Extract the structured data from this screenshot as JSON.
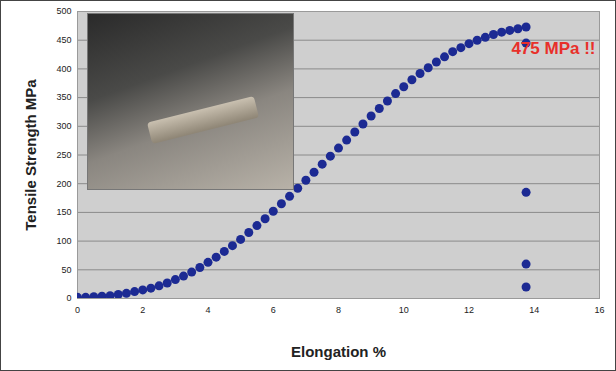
{
  "chart_data": {
    "type": "scatter",
    "x_label": "Elongation %",
    "y_label": "Tensile Strength MPa",
    "annotation": "475 MPa !!",
    "x": [
      0,
      0.25,
      0.5,
      0.75,
      1,
      1.25,
      1.5,
      1.75,
      2,
      2.25,
      2.5,
      2.75,
      3,
      3.25,
      3.5,
      3.75,
      4,
      4.25,
      4.5,
      4.75,
      5,
      5.25,
      5.5,
      5.75,
      6,
      6.25,
      6.5,
      6.75,
      7,
      7.25,
      7.5,
      7.75,
      8,
      8.25,
      8.5,
      8.75,
      9,
      9.25,
      9.5,
      9.75,
      10,
      10.25,
      10.5,
      10.75,
      11,
      11.25,
      11.5,
      11.75,
      12,
      12.25,
      12.5,
      12.75,
      13,
      13.25,
      13.5,
      13.75,
      13.75,
      13.75,
      13.75,
      13.75
    ],
    "values": [
      2,
      2,
      3,
      4,
      5,
      7,
      9,
      12,
      15,
      18,
      22,
      27,
      33,
      39,
      46,
      54,
      63,
      72,
      82,
      92,
      103,
      115,
      127,
      139,
      152,
      165,
      178,
      192,
      206,
      220,
      234,
      248,
      262,
      276,
      290,
      304,
      318,
      331,
      344,
      357,
      369,
      381,
      392,
      402,
      412,
      421,
      430,
      437,
      444,
      450,
      455,
      460,
      464,
      467,
      470,
      473,
      445,
      185,
      60,
      20
    ],
    "color": "#1c2a93",
    "marker": "circle",
    "xlim": [
      0,
      16
    ],
    "xticks": [
      0,
      2,
      4,
      6,
      8,
      10,
      12,
      14,
      16
    ],
    "ylim": [
      0,
      500
    ],
    "yticks": [
      0,
      50,
      100,
      150,
      200,
      250,
      300,
      350,
      400,
      450,
      500
    ],
    "grid": true
  }
}
